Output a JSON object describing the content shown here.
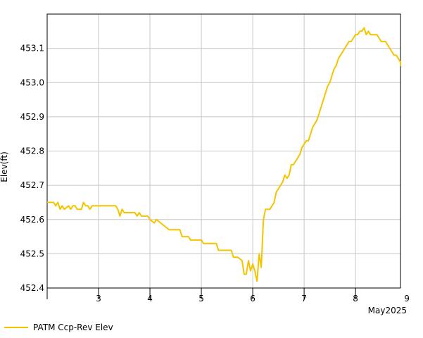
{
  "chart_data": {
    "type": "line",
    "title": "",
    "xlabel": "",
    "ylabel": "Elev(ft)",
    "ylim": [
      452.4,
      453.2
    ],
    "yticks": [
      452.4,
      452.5,
      452.6,
      452.7,
      452.8,
      452.9,
      453.0,
      453.1
    ],
    "ytick_labels": [
      "452.4",
      "452.5",
      "452.6",
      "452.7",
      "452.8",
      "452.9",
      "453.0",
      "453.1"
    ],
    "xlim": [
      "2025-05-02T12:00",
      "2025-05-09T09:00"
    ],
    "x_day_boundaries": [
      "2025-05-02T12:00",
      "2025-05-03T12:00",
      "2025-05-04T12:00",
      "2025-05-05T12:00",
      "2025-05-06T12:00",
      "2025-05-07T12:00",
      "2025-05-08T12:00",
      "2025-05-09T12:00"
    ],
    "xtick_labels": [
      {
        "label": "3",
        "date": "2025-05-03"
      },
      {
        "label": "4",
        "date": "2025-05-04"
      },
      {
        "label": "5",
        "date": "2025-05-05"
      },
      {
        "label": "6",
        "date": "2025-05-06"
      },
      {
        "label": "7",
        "date": "2025-05-07"
      },
      {
        "label": "8",
        "date": "2025-05-08"
      },
      {
        "label": "9",
        "date": "2025-05-09"
      }
    ],
    "x_period_label": "May2025",
    "grid": true,
    "legend_position": "bottom-left",
    "series": [
      {
        "name": "PATM Ccp-Rev Elev",
        "color": "#f5c400",
        "points": [
          [
            "2025-05-02T12:00",
            452.65
          ],
          [
            "2025-05-02T15:00",
            452.65
          ],
          [
            "2025-05-02T16:00",
            452.64
          ],
          [
            "2025-05-02T17:00",
            452.65
          ],
          [
            "2025-05-02T18:00",
            452.63
          ],
          [
            "2025-05-02T19:00",
            452.64
          ],
          [
            "2025-05-02T20:00",
            452.63
          ],
          [
            "2025-05-02T22:00",
            452.64
          ],
          [
            "2025-05-02T23:00",
            452.63
          ],
          [
            "2025-05-03T00:00",
            452.64
          ],
          [
            "2025-05-03T01:00",
            452.64
          ],
          [
            "2025-05-03T02:00",
            452.63
          ],
          [
            "2025-05-03T04:00",
            452.63
          ],
          [
            "2025-05-03T05:00",
            452.65
          ],
          [
            "2025-05-03T06:00",
            452.64
          ],
          [
            "2025-05-03T07:00",
            452.64
          ],
          [
            "2025-05-03T08:00",
            452.63
          ],
          [
            "2025-05-03T09:00",
            452.64
          ],
          [
            "2025-05-03T20:00",
            452.64
          ],
          [
            "2025-05-03T21:00",
            452.63
          ],
          [
            "2025-05-03T22:00",
            452.61
          ],
          [
            "2025-05-03T23:00",
            452.63
          ],
          [
            "2025-05-04T00:00",
            452.62
          ],
          [
            "2025-05-04T05:00",
            452.62
          ],
          [
            "2025-05-04T06:00",
            452.61
          ],
          [
            "2025-05-04T07:00",
            452.62
          ],
          [
            "2025-05-04T08:00",
            452.61
          ],
          [
            "2025-05-04T11:00",
            452.61
          ],
          [
            "2025-05-04T12:00",
            452.6
          ],
          [
            "2025-05-04T14:00",
            452.59
          ],
          [
            "2025-05-04T15:00",
            452.6
          ],
          [
            "2025-05-04T17:00",
            452.59
          ],
          [
            "2025-05-04T19:00",
            452.58
          ],
          [
            "2025-05-04T21:00",
            452.57
          ],
          [
            "2025-05-05T02:00",
            452.57
          ],
          [
            "2025-05-05T03:00",
            452.55
          ],
          [
            "2025-05-05T06:00",
            452.55
          ],
          [
            "2025-05-05T07:00",
            452.54
          ],
          [
            "2025-05-05T12:00",
            452.54
          ],
          [
            "2025-05-05T13:00",
            452.53
          ],
          [
            "2025-05-05T19:00",
            452.53
          ],
          [
            "2025-05-05T20:00",
            452.51
          ],
          [
            "2025-05-06T02:00",
            452.51
          ],
          [
            "2025-05-06T03:00",
            452.49
          ],
          [
            "2025-05-06T05:00",
            452.49
          ],
          [
            "2025-05-06T07:00",
            452.48
          ],
          [
            "2025-05-06T08:00",
            452.44
          ],
          [
            "2025-05-06T09:00",
            452.44
          ],
          [
            "2025-05-06T10:00",
            452.48
          ],
          [
            "2025-05-06T11:00",
            452.45
          ],
          [
            "2025-05-06T12:00",
            452.47
          ],
          [
            "2025-05-06T13:00",
            452.45
          ],
          [
            "2025-05-06T14:00",
            452.42
          ],
          [
            "2025-05-06T15:00",
            452.5
          ],
          [
            "2025-05-06T16:00",
            452.46
          ],
          [
            "2025-05-06T17:00",
            452.6
          ],
          [
            "2025-05-06T18:00",
            452.63
          ],
          [
            "2025-05-06T20:00",
            452.63
          ],
          [
            "2025-05-06T21:00",
            452.64
          ],
          [
            "2025-05-06T22:00",
            452.65
          ],
          [
            "2025-05-06T23:00",
            452.68
          ],
          [
            "2025-05-07T00:00",
            452.69
          ],
          [
            "2025-05-07T01:00",
            452.7
          ],
          [
            "2025-05-07T02:00",
            452.71
          ],
          [
            "2025-05-07T03:00",
            452.73
          ],
          [
            "2025-05-07T04:00",
            452.72
          ],
          [
            "2025-05-07T05:00",
            452.73
          ],
          [
            "2025-05-07T06:00",
            452.76
          ],
          [
            "2025-05-07T07:00",
            452.76
          ],
          [
            "2025-05-07T08:00",
            452.77
          ],
          [
            "2025-05-07T09:00",
            452.78
          ],
          [
            "2025-05-07T10:00",
            452.79
          ],
          [
            "2025-05-07T11:00",
            452.81
          ],
          [
            "2025-05-07T12:00",
            452.82
          ],
          [
            "2025-05-07T13:00",
            452.83
          ],
          [
            "2025-05-07T14:00",
            452.83
          ],
          [
            "2025-05-07T15:00",
            452.85
          ],
          [
            "2025-05-07T16:00",
            452.87
          ],
          [
            "2025-05-07T17:00",
            452.88
          ],
          [
            "2025-05-07T18:00",
            452.89
          ],
          [
            "2025-05-07T19:00",
            452.91
          ],
          [
            "2025-05-07T20:00",
            452.93
          ],
          [
            "2025-05-07T21:00",
            452.95
          ],
          [
            "2025-05-07T22:00",
            452.97
          ],
          [
            "2025-05-07T23:00",
            452.99
          ],
          [
            "2025-05-08T00:00",
            453.0
          ],
          [
            "2025-05-08T01:00",
            453.02
          ],
          [
            "2025-05-08T02:00",
            453.04
          ],
          [
            "2025-05-08T03:00",
            453.05
          ],
          [
            "2025-05-08T04:00",
            453.07
          ],
          [
            "2025-05-08T05:00",
            453.08
          ],
          [
            "2025-05-08T06:00",
            453.09
          ],
          [
            "2025-05-08T07:00",
            453.1
          ],
          [
            "2025-05-08T08:00",
            453.11
          ],
          [
            "2025-05-08T09:00",
            453.12
          ],
          [
            "2025-05-08T10:00",
            453.12
          ],
          [
            "2025-05-08T11:00",
            453.13
          ],
          [
            "2025-05-08T12:00",
            453.14
          ],
          [
            "2025-05-08T13:00",
            453.14
          ],
          [
            "2025-05-08T14:00",
            453.15
          ],
          [
            "2025-05-08T15:00",
            453.15
          ],
          [
            "2025-05-08T16:00",
            453.16
          ],
          [
            "2025-05-08T17:00",
            453.14
          ],
          [
            "2025-05-08T18:00",
            453.15
          ],
          [
            "2025-05-08T19:00",
            453.14
          ],
          [
            "2025-05-08T22:00",
            453.14
          ],
          [
            "2025-05-08T23:00",
            453.13
          ],
          [
            "2025-05-09T00:00",
            453.12
          ],
          [
            "2025-05-09T02:00",
            453.12
          ],
          [
            "2025-05-09T03:00",
            453.11
          ],
          [
            "2025-05-09T04:00",
            453.1
          ],
          [
            "2025-05-09T05:00",
            453.09
          ],
          [
            "2025-05-09T06:00",
            453.08
          ],
          [
            "2025-05-09T07:00",
            453.08
          ],
          [
            "2025-05-09T08:00",
            453.07
          ],
          [
            "2025-05-09T09:00",
            453.06
          ],
          [
            "2025-05-09T10:00",
            453.05
          ],
          [
            "2025-05-09T11:00",
            453.05
          ],
          [
            "2025-05-09T12:00",
            453.06
          ],
          [
            "2025-05-09T13:00",
            453.05
          ]
        ]
      }
    ]
  }
}
